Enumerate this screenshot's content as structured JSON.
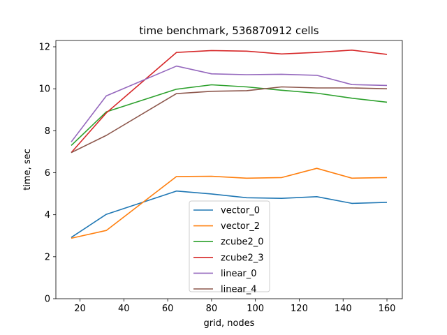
{
  "chart_data": {
    "type": "line",
    "title": "time benchmark, 536870912 cells",
    "xlabel": "grid, nodes",
    "ylabel": "time, sec",
    "xlim": [
      9,
      167
    ],
    "ylim": [
      0,
      12.3
    ],
    "xticks": [
      20,
      40,
      60,
      80,
      100,
      120,
      140,
      160
    ],
    "yticks": [
      0,
      2,
      4,
      6,
      8,
      10,
      12
    ],
    "grid": false,
    "legend_position": "lower-center",
    "x": [
      16,
      32,
      64,
      80,
      96,
      112,
      128,
      144,
      160
    ],
    "series": [
      {
        "name": "vector_0",
        "color": "#1f77b4",
        "values": [
          2.92,
          4.02,
          5.13,
          4.99,
          4.81,
          4.78,
          4.86,
          4.54,
          4.59
        ]
      },
      {
        "name": "vector_2",
        "color": "#ff7f0e",
        "values": [
          2.88,
          3.25,
          5.82,
          5.83,
          5.74,
          5.77,
          6.21,
          5.74,
          5.77
        ]
      },
      {
        "name": "zcube2_0",
        "color": "#2ca02c",
        "values": [
          7.3,
          8.9,
          9.98,
          10.19,
          10.09,
          9.93,
          9.79,
          9.55,
          9.36
        ]
      },
      {
        "name": "zcube2_3",
        "color": "#d62728",
        "values": [
          6.96,
          8.85,
          11.73,
          11.82,
          11.79,
          11.66,
          11.73,
          11.84,
          11.64
        ]
      },
      {
        "name": "linear_0",
        "color": "#9467bd",
        "values": [
          7.47,
          9.66,
          11.08,
          10.71,
          10.67,
          10.69,
          10.64,
          10.2,
          10.16
        ]
      },
      {
        "name": "linear_4",
        "color": "#8c564b",
        "values": [
          6.96,
          7.78,
          9.77,
          9.88,
          9.91,
          10.09,
          10.04,
          10.04,
          10.0
        ]
      }
    ]
  }
}
